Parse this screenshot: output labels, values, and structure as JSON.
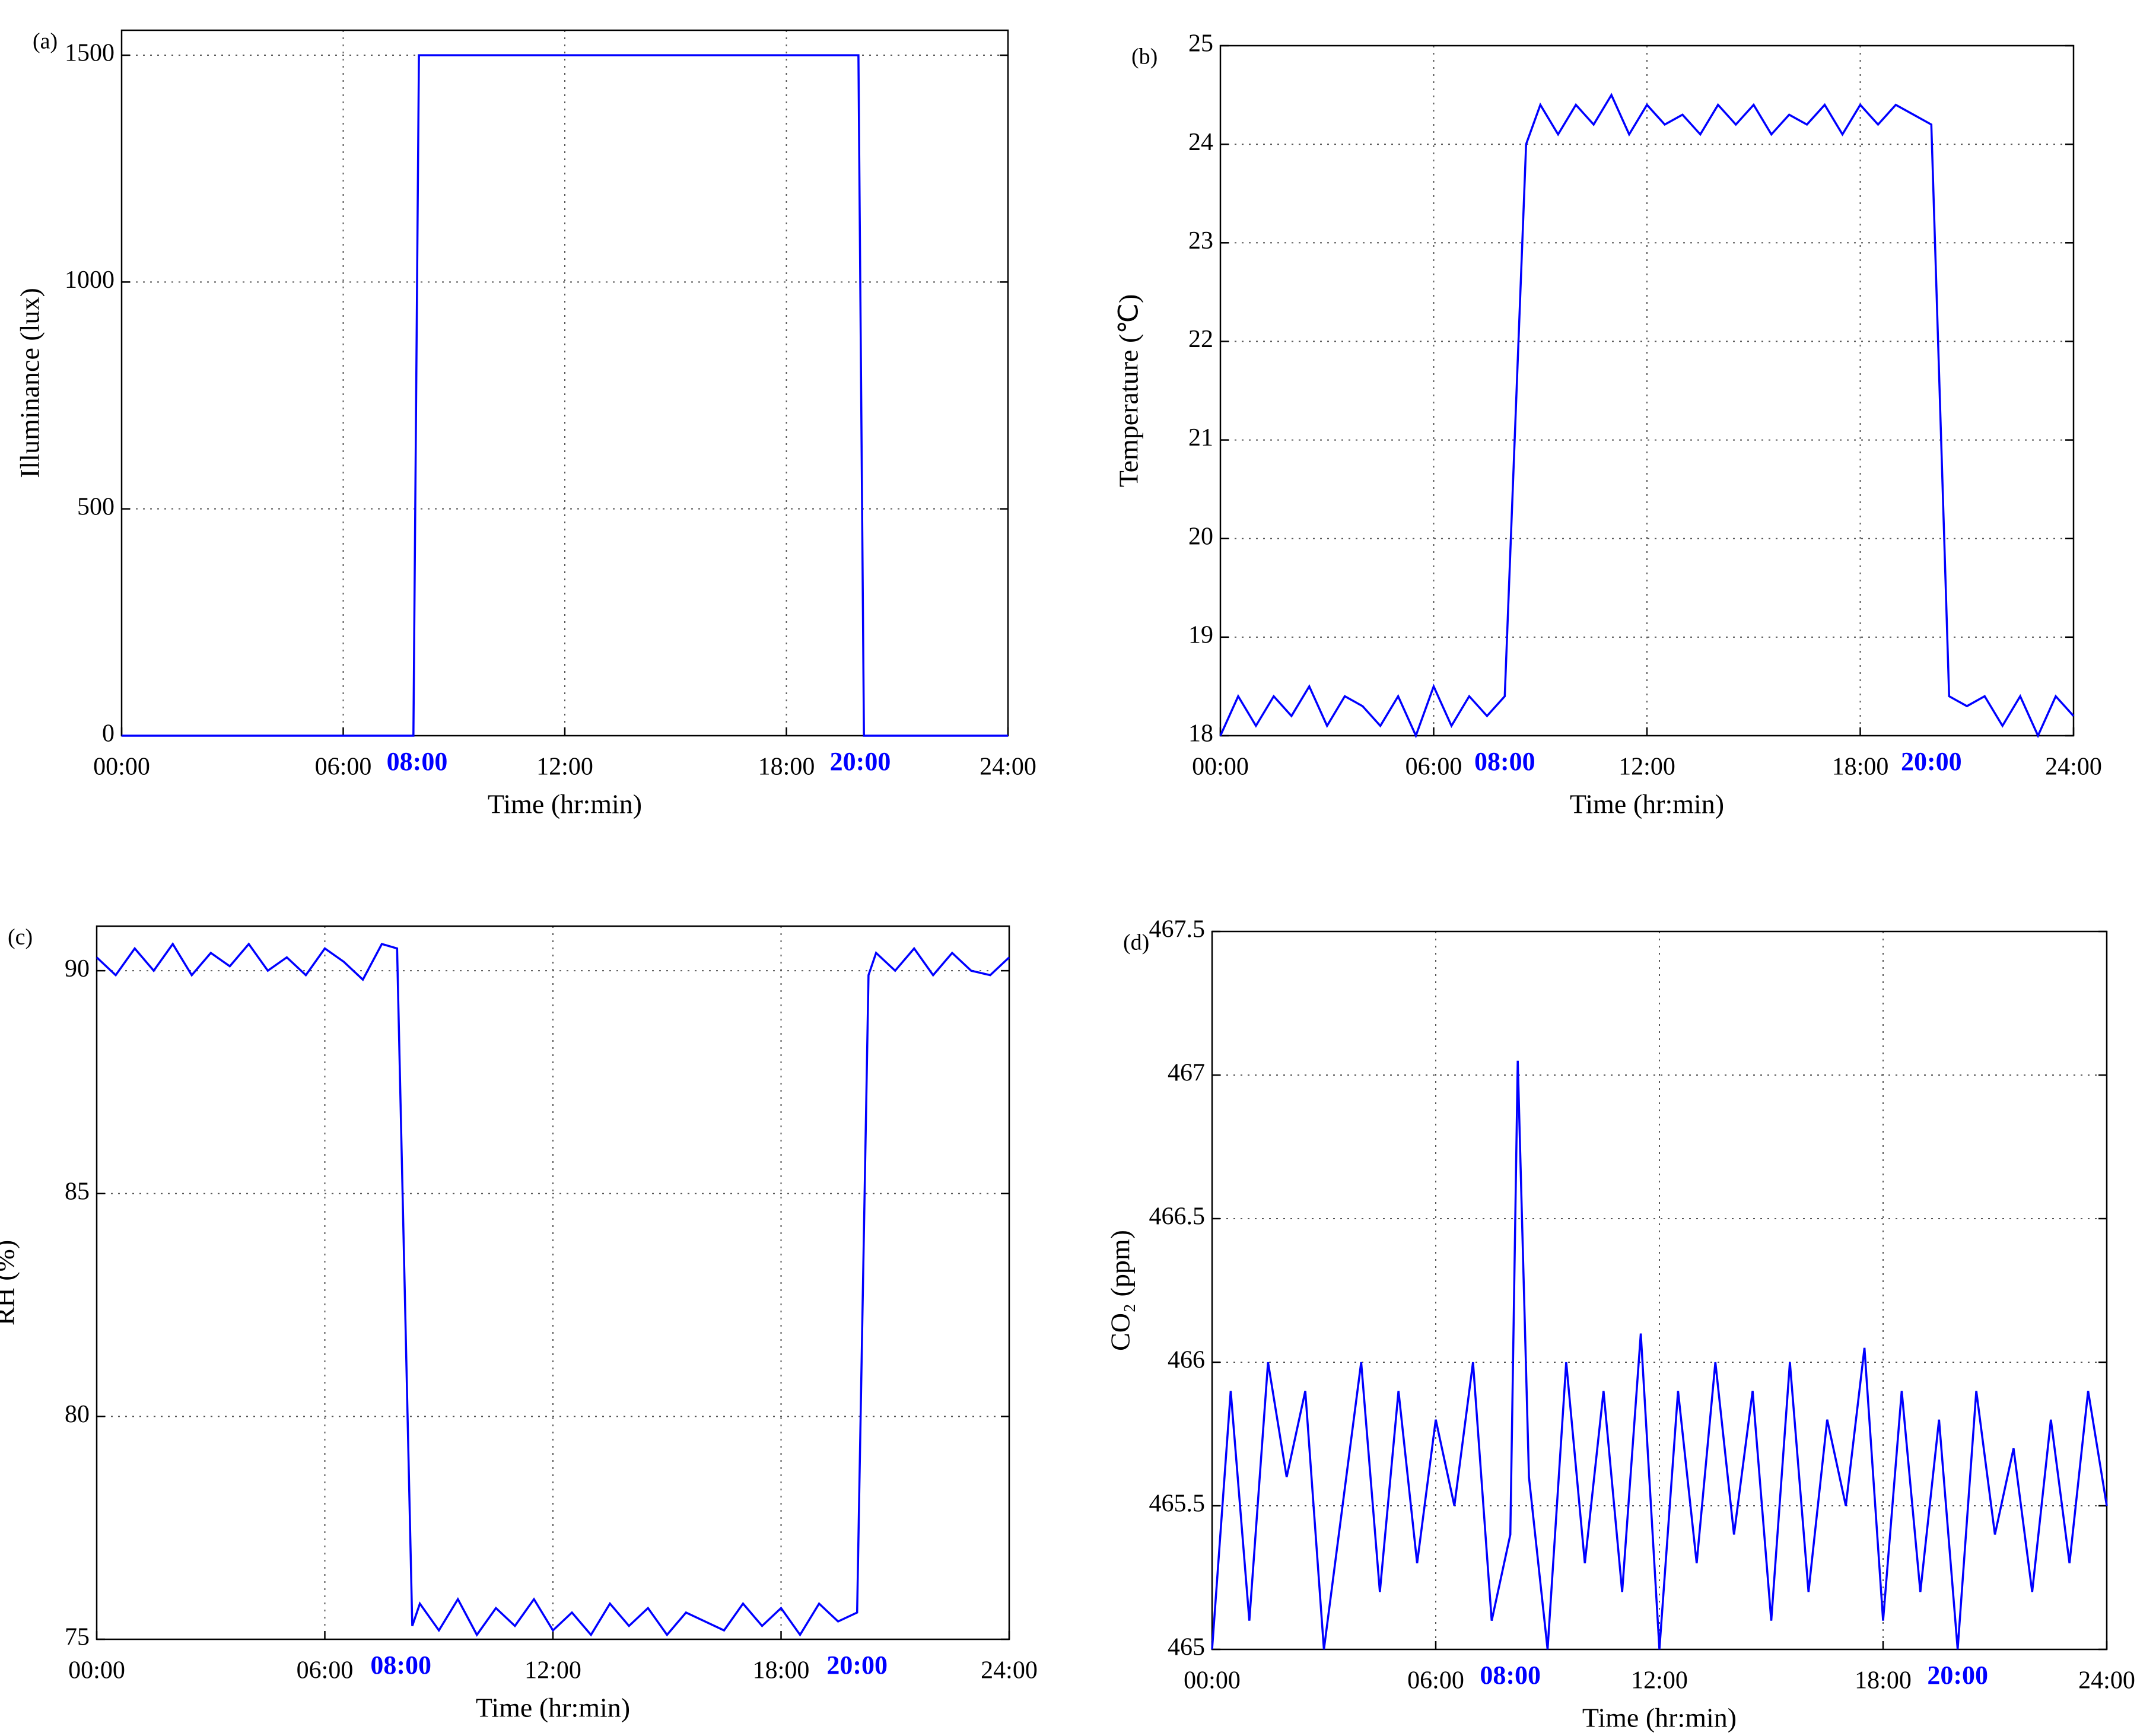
{
  "chart_data": [
    {
      "type": "line",
      "panel_label": "(a)",
      "x_label": "Time (hr:min)",
      "y_label": "Illuminance (lux)",
      "color": "#0000ff",
      "grid": true,
      "xlim": [
        0,
        24
      ],
      "ylim": [
        0,
        1555
      ],
      "xticks": [
        {
          "value": 0,
          "label": "00:00"
        },
        {
          "value": 6,
          "label": "06:00"
        },
        {
          "value": 12,
          "label": "12:00"
        },
        {
          "value": 18,
          "label": "18:00"
        },
        {
          "value": 24,
          "label": "24:00"
        }
      ],
      "yticks": [
        0,
        500,
        1000,
        1500
      ],
      "annotations": [
        {
          "x": 8,
          "text": "08:00"
        },
        {
          "x": 20,
          "text": "20:00"
        }
      ],
      "x": [
        0,
        7.9,
        8.05,
        19.95,
        20.1,
        24
      ],
      "values": [
        0,
        0,
        1500,
        1500,
        0,
        0
      ]
    },
    {
      "type": "line",
      "panel_label": "(b)",
      "x_label": "Time (hr:min)",
      "y_label": "Temperature (℃)",
      "color": "#0000ff",
      "grid": true,
      "xlim": [
        0,
        24
      ],
      "ylim": [
        18,
        25
      ],
      "xticks": [
        {
          "value": 0,
          "label": "00:00"
        },
        {
          "value": 6,
          "label": "06:00"
        },
        {
          "value": 12,
          "label": "12:00"
        },
        {
          "value": 18,
          "label": "18:00"
        },
        {
          "value": 24,
          "label": "24:00"
        }
      ],
      "yticks": [
        18,
        19,
        20,
        21,
        22,
        23,
        24,
        25
      ],
      "annotations": [
        {
          "x": 8,
          "text": "08:00"
        },
        {
          "x": 20,
          "text": "20:00"
        }
      ],
      "x": [
        0,
        0.5,
        1,
        1.5,
        2,
        2.5,
        3,
        3.5,
        4,
        4.5,
        5,
        5.5,
        6,
        6.5,
        7,
        7.5,
        8,
        8.6,
        9,
        9.5,
        10,
        10.5,
        11,
        11.5,
        12,
        12.5,
        13,
        13.5,
        14,
        14.5,
        15,
        15.5,
        16,
        16.5,
        17,
        17.5,
        18,
        18.5,
        19,
        19.5,
        20,
        20.5,
        21,
        21.5,
        22,
        22.5,
        23,
        23.5,
        24
      ],
      "values": [
        18.0,
        18.4,
        18.1,
        18.4,
        18.2,
        18.5,
        18.1,
        18.4,
        18.3,
        18.1,
        18.4,
        18.0,
        18.5,
        18.1,
        18.4,
        18.2,
        18.4,
        24.0,
        24.4,
        24.1,
        24.4,
        24.2,
        24.5,
        24.1,
        24.4,
        24.2,
        24.3,
        24.1,
        24.4,
        24.2,
        24.4,
        24.1,
        24.3,
        24.2,
        24.4,
        24.1,
        24.4,
        24.2,
        24.4,
        24.3,
        24.2,
        18.4,
        18.3,
        18.4,
        18.1,
        18.4,
        18.0,
        18.4,
        18.2
      ]
    },
    {
      "type": "line",
      "panel_label": "(c)",
      "x_label": "Time (hr:min)",
      "y_label": "RH (%)",
      "color": "#0000ff",
      "grid": true,
      "xlim": [
        0,
        24
      ],
      "ylim": [
        75,
        91
      ],
      "xticks": [
        {
          "value": 0,
          "label": "00:00"
        },
        {
          "value": 6,
          "label": "06:00"
        },
        {
          "value": 12,
          "label": "12:00"
        },
        {
          "value": 18,
          "label": "18:00"
        },
        {
          "value": 24,
          "label": "24:00"
        }
      ],
      "yticks": [
        75,
        80,
        85,
        90
      ],
      "annotations": [
        {
          "x": 8,
          "text": "08:00"
        },
        {
          "x": 20,
          "text": "20:00"
        }
      ],
      "x": [
        0,
        0.5,
        1,
        1.5,
        2,
        2.5,
        3,
        3.5,
        4,
        4.5,
        5,
        5.5,
        6,
        6.5,
        7,
        7.5,
        7.9,
        8.3,
        8.5,
        9,
        9.5,
        10,
        10.5,
        11,
        11.5,
        12,
        12.5,
        13,
        13.5,
        14,
        14.5,
        15,
        15.5,
        16,
        16.5,
        17,
        17.5,
        18,
        18.5,
        19,
        19.5,
        20,
        20.3,
        20.5,
        21,
        21.5,
        22,
        22.5,
        23,
        23.5,
        24
      ],
      "values": [
        90.3,
        89.9,
        90.5,
        90.0,
        90.6,
        89.9,
        90.4,
        90.1,
        90.6,
        90.0,
        90.3,
        89.9,
        90.5,
        90.2,
        89.8,
        90.6,
        90.5,
        75.3,
        75.8,
        75.2,
        75.9,
        75.1,
        75.7,
        75.3,
        75.9,
        75.2,
        75.6,
        75.1,
        75.8,
        75.3,
        75.7,
        75.1,
        75.6,
        75.4,
        75.2,
        75.8,
        75.3,
        75.7,
        75.1,
        75.8,
        75.4,
        75.6,
        89.9,
        90.4,
        90.0,
        90.5,
        89.9,
        90.4,
        90.0,
        89.9,
        90.3
      ]
    },
    {
      "type": "line",
      "panel_label": "(d)",
      "x_label": "Time (hr:min)",
      "y_label": "CO₂ (ppm)",
      "color": "#0000ff",
      "grid": true,
      "xlim": [
        0,
        24
      ],
      "ylim": [
        465,
        467.5
      ],
      "xticks": [
        {
          "value": 0,
          "label": "00:00"
        },
        {
          "value": 6,
          "label": "06:00"
        },
        {
          "value": 12,
          "label": "12:00"
        },
        {
          "value": 18,
          "label": "18:00"
        },
        {
          "value": 24,
          "label": "24:00"
        }
      ],
      "yticks": [
        465,
        465.5,
        466,
        466.5,
        467,
        467.5
      ],
      "annotations": [
        {
          "x": 8,
          "text": "08:00"
        },
        {
          "x": 20,
          "text": "20:00"
        }
      ],
      "x": [
        0,
        0.5,
        1,
        1.5,
        2,
        2.5,
        3,
        3.5,
        4,
        4.5,
        5,
        5.5,
        6,
        6.5,
        7,
        7.5,
        8,
        8.2,
        8.5,
        9,
        9.5,
        10,
        10.5,
        11,
        11.5,
        12,
        12.5,
        13,
        13.5,
        14,
        14.5,
        15,
        15.5,
        16,
        16.5,
        17,
        17.5,
        18,
        18.5,
        19,
        19.5,
        20,
        20.5,
        21,
        21.5,
        22,
        22.5,
        23,
        23.5,
        24
      ],
      "values": [
        465.0,
        465.9,
        465.1,
        466.0,
        465.6,
        465.9,
        465.0,
        465.5,
        466.0,
        465.2,
        465.9,
        465.3,
        465.8,
        465.5,
        466.0,
        465.1,
        465.4,
        467.05,
        465.6,
        465.0,
        466.0,
        465.3,
        465.9,
        465.2,
        466.1,
        465.0,
        465.9,
        465.3,
        466.0,
        465.4,
        465.9,
        465.1,
        466.0,
        465.2,
        465.8,
        465.5,
        466.05,
        465.1,
        465.9,
        465.2,
        465.8,
        465.0,
        465.9,
        465.4,
        465.7,
        465.2,
        465.8,
        465.3,
        465.9,
        465.5
      ]
    }
  ]
}
